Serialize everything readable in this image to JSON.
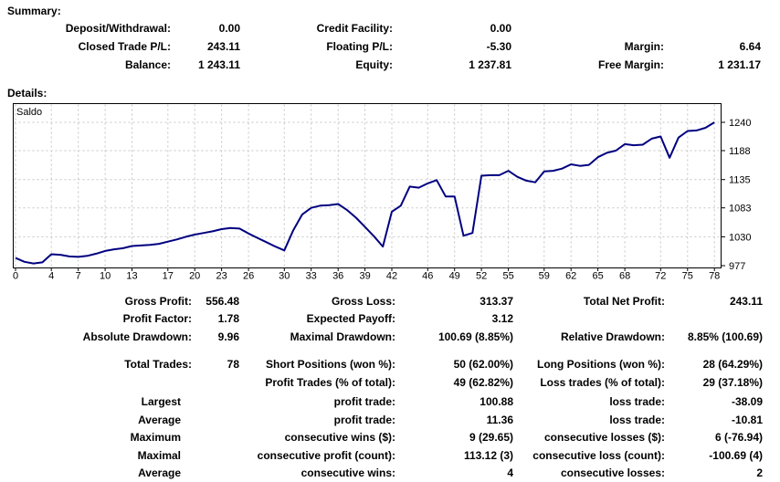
{
  "summary": {
    "heading": "Summary:",
    "rows": [
      [
        "Deposit/Withdrawal:",
        "0.00",
        "Credit Facility:",
        "0.00",
        "",
        ""
      ],
      [
        "Closed Trade P/L:",
        "243.11",
        "Floating P/L:",
        "-5.30",
        "Margin:",
        "6.64"
      ],
      [
        "Balance:",
        "1 243.11",
        "Equity:",
        "1 237.81",
        "Free Margin:",
        "1 231.17"
      ]
    ]
  },
  "details": {
    "heading": "Details:"
  },
  "chart_data": {
    "type": "line",
    "title": "Saldo",
    "x_description": "trade number, 0 to 78",
    "series": [
      {
        "name": "Saldo",
        "values": [
          991,
          984,
          981,
          983,
          998,
          997,
          994,
          993,
          995,
          999,
          1004,
          1007,
          1009,
          1013,
          1014,
          1015,
          1017,
          1021,
          1025,
          1030,
          1034,
          1037,
          1040,
          1044,
          1046,
          1045,
          1036,
          1028,
          1020,
          1012,
          1005,
          1042,
          1071,
          1083,
          1087,
          1088,
          1090,
          1079,
          1065,
          1048,
          1031,
          1012,
          1076,
          1087,
          1122,
          1120,
          1128,
          1134,
          1104,
          1104,
          1032,
          1037,
          1142,
          1143,
          1143,
          1151,
          1140,
          1133,
          1130,
          1150,
          1151,
          1155,
          1163,
          1160,
          1162,
          1176,
          1184,
          1188,
          1200,
          1198,
          1199,
          1210,
          1214,
          1175,
          1212,
          1224,
          1225,
          1230,
          1240
        ]
      }
    ],
    "x_ticks": [
      0,
      4,
      7,
      10,
      13,
      17,
      20,
      23,
      26,
      30,
      33,
      36,
      39,
      42,
      46,
      49,
      52,
      55,
      59,
      62,
      65,
      68,
      72,
      75,
      78
    ],
    "y_ticks": [
      977,
      1030,
      1083,
      1135,
      1188,
      1240
    ],
    "xlim": [
      0,
      78
    ],
    "ylim": [
      973,
      1272
    ],
    "grid": true,
    "legend_position": "none",
    "y_axis_side": "right",
    "line_color": "#000080",
    "grid_color": "#c4c4c4",
    "border_color": "#000000"
  },
  "stats": {
    "rows": [
      [
        "Gross Profit:",
        "556.48",
        "Gross Loss:",
        "313.37",
        "Total Net Profit:",
        "243.11"
      ],
      [
        "Profit Factor:",
        "1.78",
        "Expected Payoff:",
        "3.12",
        "",
        ""
      ],
      [
        "Absolute Drawdown:",
        "9.96",
        "Maximal Drawdown:",
        "100.69 (8.85%)",
        "Relative Drawdown:",
        "8.85% (100.69)"
      ],
      [
        "Total Trades:",
        "78",
        "Short Positions (won %):",
        "50 (62.00%)",
        "Long Positions (won %):",
        "28 (64.29%)"
      ],
      [
        "",
        "",
        "Profit Trades (% of total):",
        "49 (62.82%)",
        "Loss trades (% of total):",
        "29 (37.18%)"
      ],
      [
        "Largest",
        "",
        "profit trade:",
        "100.88",
        "loss trade:",
        "-38.09"
      ],
      [
        "Average",
        "",
        "profit trade:",
        "11.36",
        "loss trade:",
        "-10.81"
      ],
      [
        "Maximum",
        "",
        "consecutive wins ($):",
        "9 (29.65)",
        "consecutive losses ($):",
        "6 (-76.94)"
      ],
      [
        "Maximal",
        "",
        "consecutive profit (count):",
        "113.12 (3)",
        "consecutive loss (count):",
        "-100.69 (4)"
      ],
      [
        "Average",
        "",
        "consecutive wins:",
        "4",
        "consecutive losses:",
        "2"
      ]
    ]
  }
}
